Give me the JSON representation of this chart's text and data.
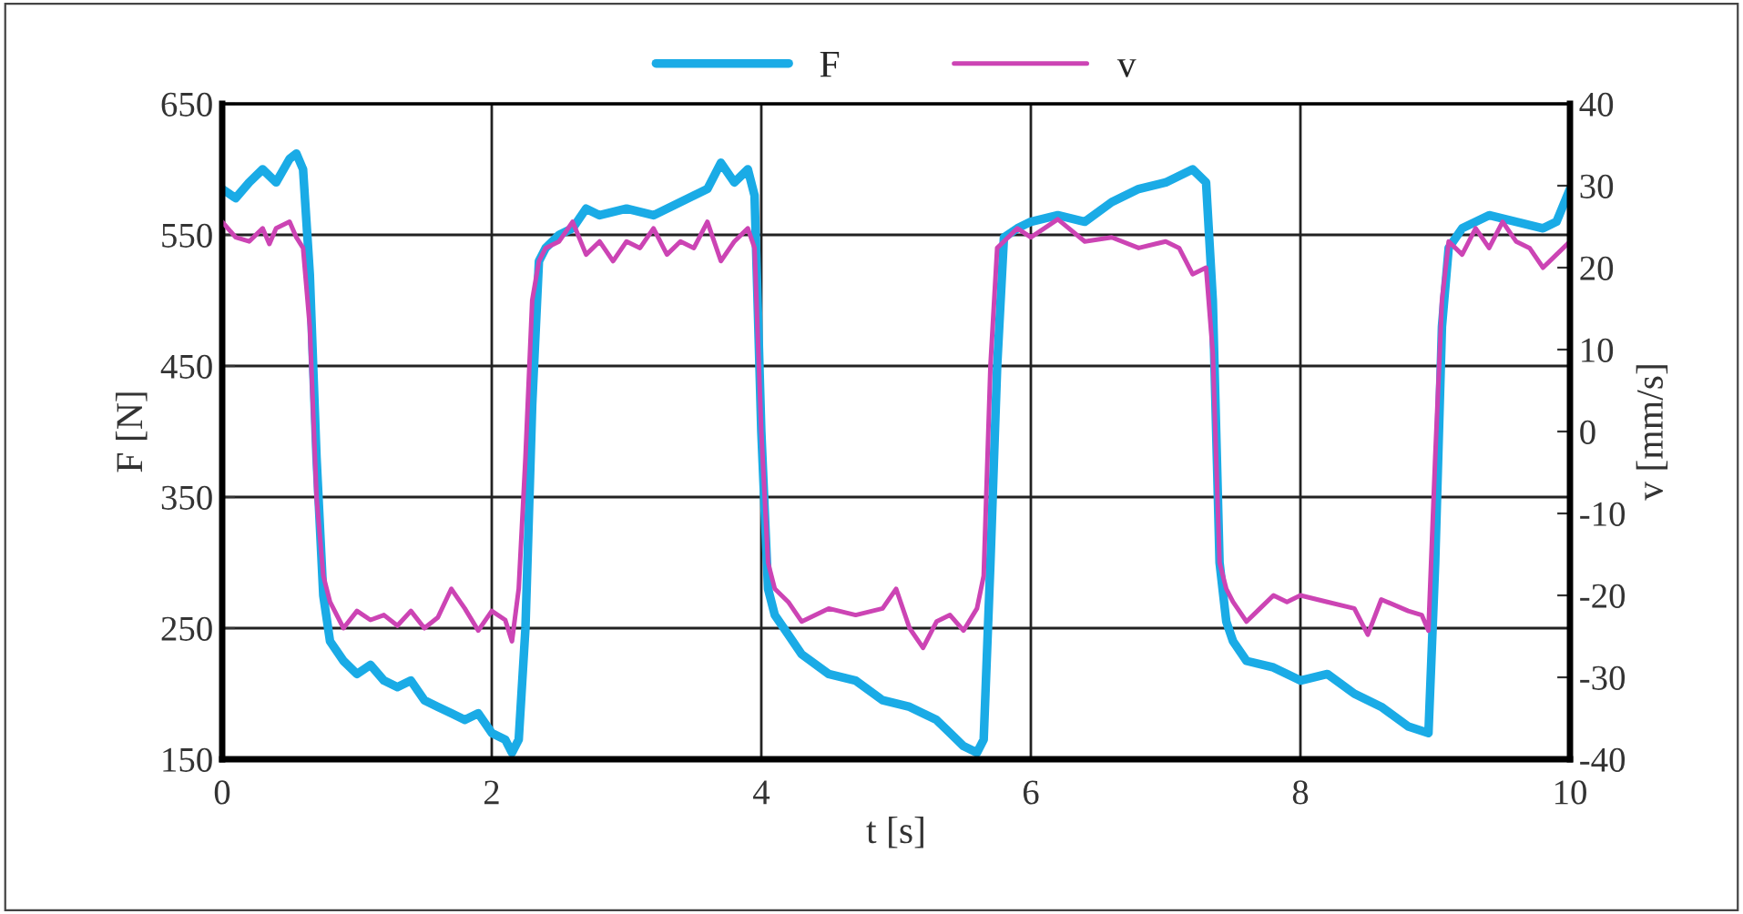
{
  "chart_data": {
    "type": "line",
    "xlabel": "t [s]",
    "ylabel": "F [N]",
    "y2label": "v [mm/s]",
    "xlim": [
      0,
      10
    ],
    "xticks": [
      0,
      2,
      4,
      6,
      8,
      10
    ],
    "ylim": [
      150,
      650
    ],
    "yticks": [
      150,
      250,
      350,
      450,
      550,
      650
    ],
    "y2lim": [
      -40,
      40
    ],
    "y2ticks": [
      -40,
      -30,
      -20,
      -10,
      0,
      10,
      20,
      30,
      40
    ],
    "grid": true,
    "legend": "top",
    "line_style": "solid",
    "marker": "none",
    "series": [
      {
        "name": "F",
        "color": "#1aabe6",
        "x": [
          0,
          0.1,
          0.2,
          0.3,
          0.4,
          0.5,
          0.55,
          0.6,
          0.65,
          0.7,
          0.75,
          0.8,
          0.9,
          1.0,
          1.1,
          1.2,
          1.3,
          1.4,
          1.5,
          1.6,
          1.7,
          1.8,
          1.9,
          2.0,
          2.1,
          2.15,
          2.2,
          2.25,
          2.3,
          2.35,
          2.4,
          2.5,
          2.6,
          2.7,
          2.8,
          3.0,
          3.2,
          3.4,
          3.5,
          3.6,
          3.7,
          3.8,
          3.9,
          3.95,
          4.0,
          4.05,
          4.1,
          4.2,
          4.3,
          4.5,
          4.7,
          4.9,
          5.1,
          5.3,
          5.4,
          5.5,
          5.6,
          5.65,
          5.7,
          5.75,
          5.8,
          5.9,
          6.0,
          6.2,
          6.4,
          6.6,
          6.8,
          7.0,
          7.2,
          7.3,
          7.35,
          7.4,
          7.45,
          7.5,
          7.6,
          7.8,
          8.0,
          8.2,
          8.4,
          8.6,
          8.8,
          8.95,
          9.0,
          9.05,
          9.1,
          9.2,
          9.4,
          9.6,
          9.8,
          9.9,
          10.0
        ],
        "values": [
          585,
          578,
          590,
          600,
          590,
          608,
          612,
          600,
          520,
          380,
          275,
          240,
          225,
          215,
          222,
          210,
          205,
          210,
          195,
          190,
          185,
          180,
          185,
          170,
          165,
          155,
          165,
          250,
          420,
          530,
          540,
          550,
          555,
          570,
          565,
          570,
          565,
          575,
          580,
          585,
          605,
          590,
          600,
          580,
          400,
          280,
          260,
          245,
          230,
          215,
          210,
          195,
          190,
          180,
          170,
          160,
          155,
          165,
          300,
          450,
          548,
          555,
          560,
          565,
          560,
          575,
          585,
          590,
          600,
          590,
          500,
          300,
          255,
          240,
          225,
          220,
          210,
          215,
          200,
          190,
          175,
          170,
          300,
          480,
          540,
          555,
          565,
          560,
          555,
          560,
          585
        ]
      },
      {
        "name": "v",
        "color": "#cc44b4",
        "axis": "y2",
        "x": [
          0,
          0.1,
          0.2,
          0.3,
          0.35,
          0.4,
          0.5,
          0.55,
          0.6,
          0.65,
          0.7,
          0.75,
          0.8,
          0.9,
          1.0,
          1.1,
          1.2,
          1.3,
          1.4,
          1.5,
          1.6,
          1.7,
          1.8,
          1.9,
          2.0,
          2.1,
          2.15,
          2.2,
          2.25,
          2.3,
          2.35,
          2.4,
          2.5,
          2.6,
          2.7,
          2.8,
          2.9,
          3.0,
          3.1,
          3.2,
          3.3,
          3.4,
          3.5,
          3.6,
          3.7,
          3.8,
          3.9,
          3.95,
          4.0,
          4.05,
          4.1,
          4.2,
          4.3,
          4.5,
          4.7,
          4.9,
          5.0,
          5.1,
          5.2,
          5.3,
          5.4,
          5.5,
          5.6,
          5.65,
          5.7,
          5.75,
          5.8,
          5.9,
          6.0,
          6.2,
          6.4,
          6.6,
          6.8,
          7.0,
          7.1,
          7.2,
          7.3,
          7.35,
          7.4,
          7.45,
          7.5,
          7.6,
          7.7,
          7.8,
          7.9,
          8.0,
          8.2,
          8.4,
          8.5,
          8.6,
          8.8,
          8.9,
          8.95,
          9.0,
          9.05,
          9.1,
          9.2,
          9.3,
          9.4,
          9.5,
          9.6,
          9.7,
          9.8,
          9.9,
          10.0
        ],
        "values": [
          25.6,
          23.7,
          23.2,
          24.8,
          22.9,
          24.8,
          25.6,
          23.7,
          22.4,
          12.8,
          -8,
          -17.6,
          -20.8,
          -24,
          -21.9,
          -23,
          -22.4,
          -23.7,
          -21.9,
          -24,
          -22.7,
          -19.2,
          -21.6,
          -24.3,
          -21.9,
          -23,
          -25.6,
          -19.2,
          -3.2,
          16,
          20.8,
          22.4,
          23.2,
          25.6,
          21.6,
          23.2,
          20.8,
          23.2,
          22.4,
          24.8,
          21.6,
          23.2,
          22.4,
          25.6,
          20.8,
          23.2,
          24.8,
          22.4,
          0,
          -16,
          -19.2,
          -20.8,
          -23.2,
          -21.6,
          -22.4,
          -21.6,
          -19.2,
          -24,
          -26.4,
          -23.2,
          -22.4,
          -24.3,
          -21.6,
          -17.6,
          8,
          22.4,
          23.2,
          24.8,
          23.7,
          25.9,
          23.2,
          23.7,
          22.4,
          23.2,
          22.4,
          19.2,
          20,
          9.6,
          -16,
          -19.2,
          -20.8,
          -23.2,
          -21.6,
          -20,
          -20.8,
          -20,
          -20.8,
          -21.6,
          -24.8,
          -20.5,
          -21.9,
          -22.4,
          -24.3,
          -3.2,
          16,
          23.2,
          21.6,
          24.8,
          22.4,
          25.6,
          23.2,
          22.4,
          20,
          21.6,
          23.2
        ]
      }
    ]
  }
}
